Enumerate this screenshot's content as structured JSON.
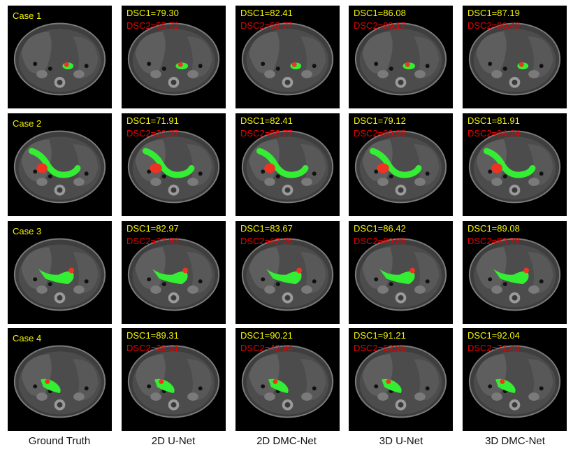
{
  "columns": [
    "Ground Truth",
    "2D U-Net",
    "2D DMC-Net",
    "3D U-Net",
    "3D DMC-Net"
  ],
  "colors": {
    "organ": "#33ee33",
    "lesion": "#ee3322",
    "dsc1": "#f5f500",
    "dsc2": "#e80000"
  },
  "rows": [
    {
      "case": "Case 1",
      "dsc": [
        {
          "d1": "DSC1=79.30",
          "d2": "DSC2=55.72"
        },
        {
          "d1": "DSC1=82.41",
          "d2": "DSC2=58.77"
        },
        {
          "d1": "DSC1=86.08",
          "d2": "DSC2=89.17"
        },
        {
          "d1": "DSC1=87.19",
          "d2": "DSC2=90.40"
        }
      ]
    },
    {
      "case": "Case 2",
      "dsc": [
        {
          "d1": "DSC1=71.91",
          "d2": "DSC2=20.07"
        },
        {
          "d1": "DSC1=82.41",
          "d2": "DSC2=58.77"
        },
        {
          "d1": "DSC1=79.12",
          "d2": "DSC2=90.96"
        },
        {
          "d1": "DSC1=81.91",
          "d2": "DSC2=94.34"
        }
      ]
    },
    {
      "case": "Case 3",
      "dsc": [
        {
          "d1": "DSC1=82.97",
          "d2": "DSC2=27.83"
        },
        {
          "d1": "DSC1=83.67",
          "d2": "DSC2=62.26"
        },
        {
          "d1": "DSC1=86.42",
          "d2": "DSC2=80.86"
        },
        {
          "d1": "DSC1=89.08",
          "d2": "DSC2=83.78"
        }
      ]
    },
    {
      "case": "Case 4",
      "dsc": [
        {
          "d1": "DSC1=89.31",
          "d2": "DSC2=28.51"
        },
        {
          "d1": "DSC1=90.21",
          "d2": "DSC2=42.94"
        },
        {
          "d1": "DSC1=91.21",
          "d2": "DSC2=62.96"
        },
        {
          "d1": "DSC1=92.04",
          "d2": "DSC2=71.40"
        }
      ]
    }
  ]
}
